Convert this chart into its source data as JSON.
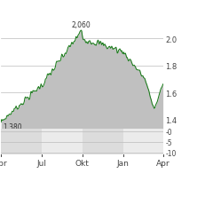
{
  "x_labels": [
    "Apr",
    "Jul",
    "Okt",
    "Jan",
    "Apr"
  ],
  "y_ticks_main": [
    1.4,
    1.6,
    1.8,
    2.0
  ],
  "y_min": 1.33,
  "y_max": 2.13,
  "min_label": "1,380",
  "max_label": "2,060",
  "line_color": "#1a7a1a",
  "fill_color": "#c0c0c0",
  "bg_color": "#ffffff",
  "grid_color": "#bbbbbb",
  "vol_band_colors": [
    "#dcdcdc",
    "#ebebeb",
    "#dcdcdc",
    "#ebebeb",
    "#dcdcdc"
  ],
  "y_ticks_vol": [
    -10,
    -5,
    0
  ],
  "label_color": "#444444",
  "annotation_color": "#333333"
}
